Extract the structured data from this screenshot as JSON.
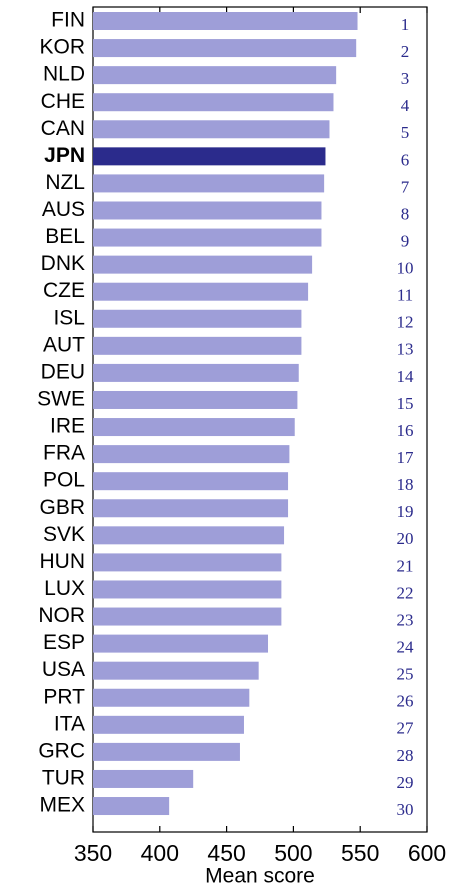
{
  "chart_data": {
    "type": "bar",
    "orientation": "horizontal",
    "categories": [
      "FIN",
      "KOR",
      "NLD",
      "CHE",
      "CAN",
      "JPN",
      "NZL",
      "AUS",
      "BEL",
      "DNK",
      "CZE",
      "ISL",
      "AUT",
      "DEU",
      "SWE",
      "IRE",
      "FRA",
      "POL",
      "GBR",
      "SVK",
      "HUN",
      "LUX",
      "NOR",
      "ESP",
      "USA",
      "PRT",
      "ITA",
      "GRC",
      "TUR",
      "MEX"
    ],
    "values": [
      548,
      547,
      532,
      530,
      527,
      524,
      523,
      521,
      521,
      514,
      511,
      506,
      506,
      504,
      503,
      501,
      497,
      496,
      496,
      493,
      491,
      491,
      491,
      481,
      474,
      467,
      463,
      460,
      425,
      407
    ],
    "ranks": [
      1,
      2,
      3,
      4,
      5,
      6,
      7,
      8,
      9,
      10,
      11,
      12,
      13,
      14,
      15,
      16,
      17,
      18,
      19,
      20,
      21,
      22,
      23,
      24,
      25,
      26,
      27,
      28,
      29,
      30
    ],
    "color": "#9e9ed8",
    "highlight": "JPN",
    "highlight_color": "#2b2b8c",
    "xlim": [
      350,
      600
    ],
    "xticks": [
      350,
      400,
      450,
      500,
      550,
      600
    ],
    "xlabel": "Mean score"
  }
}
